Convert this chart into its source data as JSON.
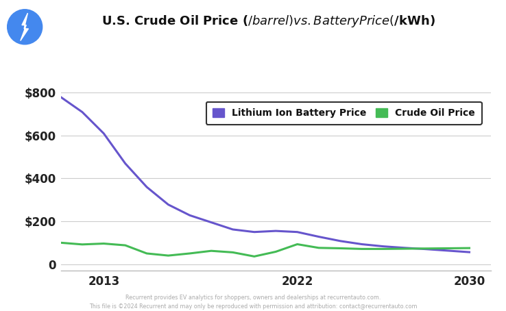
{
  "title": "U.S. Crude Oil Price ($/barrel)​vs. Battery Price ($/kWh)",
  "title_display": "U.S. Crude Oil Price ($/barrel)vs. Battery Price ($/kWh)",
  "background_color": "#ffffff",
  "plot_bg_color": "#ffffff",
  "battery_years": [
    2011,
    2012,
    2013,
    2014,
    2015,
    2016,
    2017,
    2018,
    2019,
    2020,
    2021,
    2022,
    2023,
    2024,
    2025,
    2026,
    2027,
    2028,
    2029,
    2030
  ],
  "battery_values": [
    780,
    710,
    610,
    470,
    360,
    278,
    228,
    195,
    162,
    150,
    155,
    150,
    128,
    108,
    93,
    83,
    76,
    70,
    63,
    56
  ],
  "oil_years": [
    2011,
    2012,
    2013,
    2014,
    2015,
    2016,
    2017,
    2018,
    2019,
    2020,
    2021,
    2022,
    2023,
    2024,
    2025,
    2026,
    2027,
    2028,
    2029,
    2030
  ],
  "oil_values": [
    100,
    92,
    96,
    88,
    50,
    40,
    50,
    62,
    55,
    36,
    58,
    93,
    76,
    74,
    71,
    71,
    72,
    73,
    74,
    75
  ],
  "battery_color": "#6655cc",
  "oil_color": "#44bb55",
  "battery_label": "Lithium Ion Battery Price",
  "oil_label": "Crude Oil Price",
  "yticks": [
    0,
    200,
    400,
    600,
    800
  ],
  "ytick_labels": [
    "0",
    "$200",
    "$400",
    "$600",
    "$800"
  ],
  "xtick_positions": [
    2013,
    2022,
    2030
  ],
  "xlim": [
    2011,
    2031
  ],
  "ylim": [
    -30,
    870
  ],
  "footer_line1": "Recurrent provides EV analytics for shoppers, owners and dealerships at recurrentauto.com.",
  "footer_line2": "This file is ©2024 Recurrent and may only be reproduced with permission and attribution: contact@recurrentauto.com",
  "icon_color": "#4488ee",
  "line_width": 2.2,
  "grid_color": "#cccccc"
}
